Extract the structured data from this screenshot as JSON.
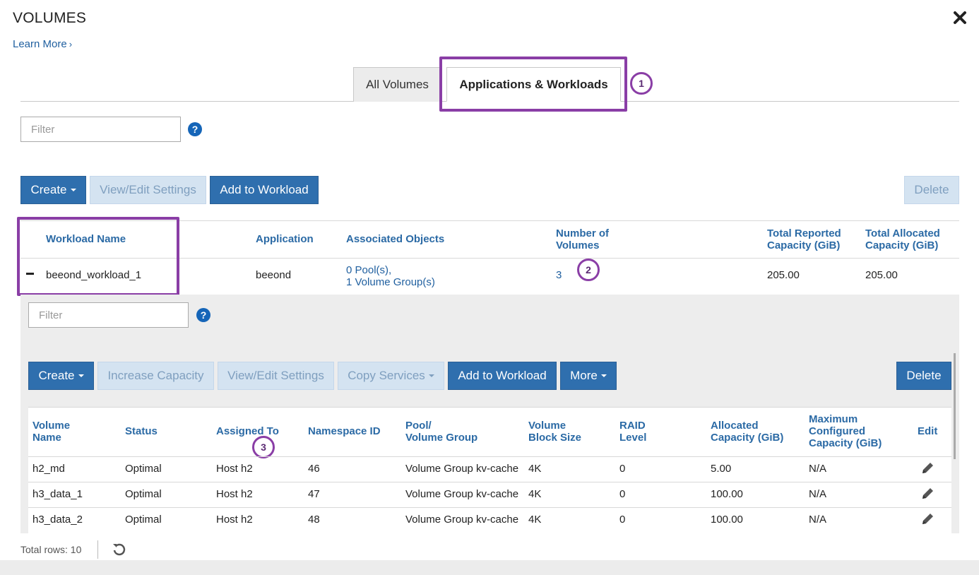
{
  "title": "VOLUMES",
  "learn_more": "Learn More",
  "tabs": {
    "all": "All Volumes",
    "apps": "Applications & Workloads"
  },
  "badges": [
    "1",
    "2",
    "3"
  ],
  "filter_placeholder": "Filter",
  "help_glyph": "?",
  "toolbar": {
    "create": "Create",
    "view_edit": "View/Edit Settings",
    "add_to_workload": "Add to Workload",
    "delete": "Delete"
  },
  "workload_table": {
    "headers": {
      "name": "Workload Name",
      "application": "Application",
      "objects": "Associated Objects",
      "num_volumes_1": "Number of",
      "num_volumes_2": "Volumes",
      "reported_1": "Total Reported",
      "reported_2": "Capacity (GiB)",
      "allocated_1": "Total Allocated",
      "allocated_2": "Capacity (GiB)"
    },
    "row": {
      "collapse": "−",
      "name": "beeond_workload_1",
      "application": "beeond",
      "objects_pools": "0 Pool(s),",
      "objects_groups": "1 Volume Group(s)",
      "num_volumes": "3",
      "reported": "205.00",
      "allocated": "205.00"
    }
  },
  "inner_toolbar": {
    "create": "Create",
    "increase": "Increase Capacity",
    "view_edit": "View/Edit Settings",
    "copy": "Copy Services",
    "add_to_workload": "Add to Workload",
    "more": "More",
    "delete": "Delete"
  },
  "volume_table": {
    "headers": {
      "name_1": "Volume",
      "name_2": "Name",
      "status": "Status",
      "assigned": "Assigned To",
      "namespace": "Namespace ID",
      "pool_1": "Pool/",
      "pool_2": "Volume Group",
      "block_1": "Volume",
      "block_2": "Block Size",
      "raid_1": "RAID",
      "raid_2": "Level",
      "alloc_1": "Allocated",
      "alloc_2": "Capacity (GiB)",
      "max_1": "Maximum",
      "max_2": "Configured",
      "max_3": "Capacity (GiB)",
      "edit": "Edit"
    },
    "rows": [
      {
        "name": "h2_md",
        "status": "Optimal",
        "assigned": "Host h2",
        "namespace": "46",
        "pool": "Volume Group kv-cache",
        "block": "4K",
        "raid": "0",
        "alloc": "5.00",
        "max": "N/A"
      },
      {
        "name": "h3_data_1",
        "status": "Optimal",
        "assigned": "Host h2",
        "namespace": "47",
        "pool": "Volume Group kv-cache",
        "block": "4K",
        "raid": "0",
        "alloc": "100.00",
        "max": "N/A"
      },
      {
        "name": "h3_data_2",
        "status": "Optimal",
        "assigned": "Host h2",
        "namespace": "48",
        "pool": "Volume Group kv-cache",
        "block": "4K",
        "raid": "0",
        "alloc": "100.00",
        "max": "N/A"
      }
    ]
  },
  "footer": {
    "total_rows": "Total rows: 10"
  },
  "colors": {
    "primary": "#2f6fae",
    "disabled": "#d4e3f1",
    "highlight": "#8a3ea6",
    "link": "#1f5f9f"
  }
}
